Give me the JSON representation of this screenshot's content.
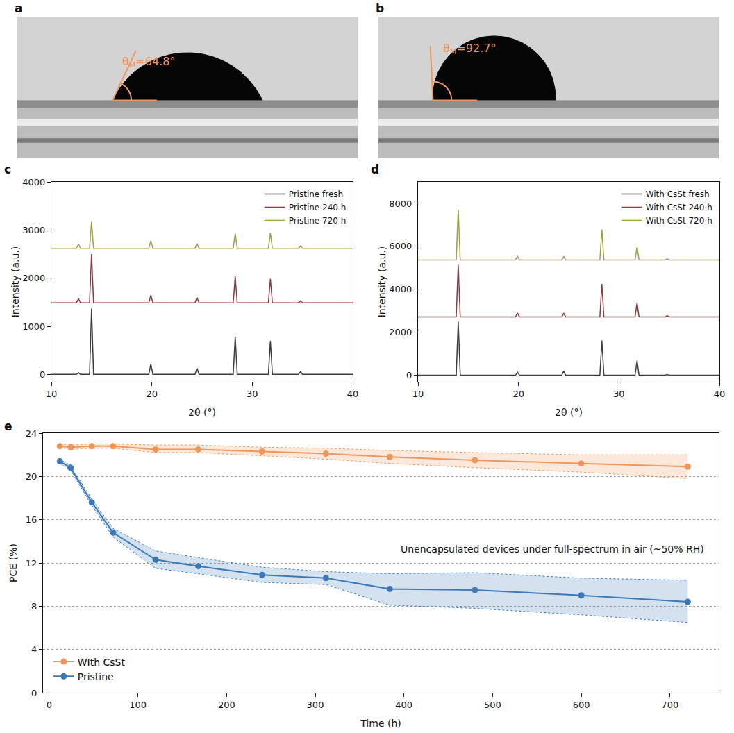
{
  "chart_data": [
    {
      "panel": "a",
      "type": "contact_angle",
      "label": "θ",
      "label_subscript": "M",
      "label_value": "=64.8°",
      "contact_angle": 64.8,
      "color": "#f0965a"
    },
    {
      "panel": "b",
      "type": "contact_angle",
      "label": "θ",
      "label_subscript": "M",
      "label_value": "=92.7°",
      "contact_angle": 92.7,
      "color": "#f0965a"
    },
    {
      "panel": "c",
      "type": "line",
      "x_label": "2θ (°)",
      "y_label": "Intensity (a.u.)",
      "x": [
        10,
        12.5,
        12.7,
        12.9,
        13.8,
        14.0,
        14.2,
        19.7,
        19.9,
        20.1,
        24.3,
        24.5,
        24.7,
        28.1,
        28.3,
        28.5,
        31.6,
        31.8,
        32.0,
        34.6,
        34.8,
        35.0,
        40
      ],
      "xlim": [
        10,
        40
      ],
      "xticks": [
        10,
        20,
        30,
        40
      ],
      "ylim": [
        -150,
        4000
      ],
      "yticks": [
        0,
        1000,
        2000,
        3000,
        4000
      ],
      "grid": false,
      "legend": "top right",
      "series": [
        {
          "name": "Pristine fresh",
          "color": "#3d3d3d",
          "line_style": "solid",
          "values": [
            5,
            5,
            40,
            5,
            5,
            1370,
            5,
            5,
            220,
            5,
            5,
            130,
            5,
            5,
            790,
            5,
            5,
            700,
            5,
            5,
            60,
            5,
            5
          ]
        },
        {
          "name": "Pristine 240 h",
          "color": "#8a3b3e",
          "line_style": "solid",
          "values": [
            1490,
            1490,
            1580,
            1490,
            1490,
            2500,
            1490,
            1490,
            1650,
            1490,
            1490,
            1600,
            1490,
            1490,
            2040,
            1490,
            1490,
            1990,
            1490,
            1490,
            1530,
            1490,
            1490
          ]
        },
        {
          "name": "Pristine 720 h",
          "color": "#9ba33b",
          "line_style": "solid",
          "values": [
            2620,
            2620,
            2710,
            2620,
            2620,
            3170,
            2620,
            2620,
            2780,
            2620,
            2620,
            2720,
            2620,
            2620,
            2930,
            2620,
            2620,
            2940,
            2620,
            2620,
            2670,
            2620,
            2620
          ]
        }
      ]
    },
    {
      "panel": "d",
      "type": "line",
      "x_label": "2θ (°)",
      "y_label": "Intensity (a.u.)",
      "x": [
        10,
        12.5,
        12.7,
        12.9,
        13.8,
        14.0,
        14.2,
        19.7,
        19.9,
        20.1,
        24.3,
        24.5,
        24.7,
        28.1,
        28.3,
        28.5,
        31.6,
        31.8,
        32.0,
        34.6,
        34.8,
        35.0,
        40
      ],
      "xlim": [
        10,
        40
      ],
      "xticks": [
        10,
        20,
        30,
        40
      ],
      "ylim": [
        -300,
        9000
      ],
      "yticks": [
        0,
        2000,
        4000,
        6000,
        8000
      ],
      "grid": false,
      "legend": "top right",
      "series": [
        {
          "name": "With CsSt fresh",
          "color": "#3d3d3d",
          "line_style": "solid",
          "values": [
            5,
            5,
            5,
            5,
            5,
            2500,
            5,
            5,
            150,
            5,
            5,
            200,
            5,
            5,
            1620,
            5,
            5,
            680,
            5,
            5,
            40,
            5,
            5
          ]
        },
        {
          "name": "With CsSt 240 h",
          "color": "#8a3b3e",
          "line_style": "solid",
          "values": [
            2720,
            2720,
            2720,
            2720,
            2720,
            5150,
            2720,
            2720,
            2900,
            2720,
            2720,
            2880,
            2720,
            2720,
            4250,
            2720,
            2720,
            3370,
            2720,
            2720,
            2780,
            2720,
            2720
          ]
        },
        {
          "name": "With CsSt 720 h",
          "color": "#9ba33b",
          "line_style": "solid",
          "values": [
            5370,
            5370,
            5370,
            5370,
            5370,
            7700,
            5370,
            5370,
            5540,
            5370,
            5370,
            5520,
            5370,
            5370,
            6780,
            5370,
            5370,
            5980,
            5370,
            5370,
            5420,
            5370,
            5370
          ]
        }
      ]
    },
    {
      "panel": "e",
      "type": "line",
      "x_label": "Time (h)",
      "y_label": "PCE (%)",
      "annotation": {
        "text": "Unencapsulated devices under full-spectrum in air (~50% RH)",
        "x": 395,
        "y": 13.3
      },
      "x": [
        12,
        24,
        48,
        72,
        120,
        168,
        240,
        312,
        384,
        480,
        600,
        720
      ],
      "xlim": [
        -7,
        755
      ],
      "xticks": [
        0,
        100,
        200,
        300,
        400,
        500,
        600,
        700
      ],
      "ylim": [
        0,
        24
      ],
      "yticks": [
        0,
        4,
        8,
        12,
        16,
        20,
        24
      ],
      "grid": true,
      "legend": "bottom left",
      "series": [
        {
          "name": "Pristine",
          "color": "#3b78b8",
          "marker": "circle",
          "line_style": "solid",
          "values": [
            21.4,
            20.8,
            17.6,
            14.8,
            12.3,
            11.7,
            10.9,
            10.6,
            9.6,
            9.5,
            9.0,
            8.4
          ],
          "lower": [
            21.2,
            20.6,
            17.3,
            14.4,
            11.5,
            11.0,
            10.2,
            10.0,
            8.1,
            7.8,
            7.2,
            6.5
          ],
          "upper": [
            21.6,
            21.0,
            17.9,
            15.2,
            13.1,
            12.5,
            11.6,
            11.2,
            11.0,
            11.1,
            10.6,
            10.4
          ]
        },
        {
          "name": "WIth CsSt",
          "color": "#f0965a",
          "marker": "circle",
          "line_style": "solid",
          "values": [
            22.8,
            22.7,
            22.8,
            22.8,
            22.5,
            22.5,
            22.3,
            22.1,
            21.8,
            21.5,
            21.2,
            20.9
          ],
          "lower": [
            22.7,
            22.5,
            22.6,
            22.6,
            22.2,
            22.2,
            21.9,
            21.6,
            21.2,
            20.8,
            20.4,
            19.8
          ],
          "upper": [
            23.0,
            22.9,
            23.0,
            23.0,
            22.9,
            22.9,
            22.7,
            22.6,
            22.4,
            22.2,
            22.0,
            22.0
          ]
        }
      ]
    }
  ]
}
